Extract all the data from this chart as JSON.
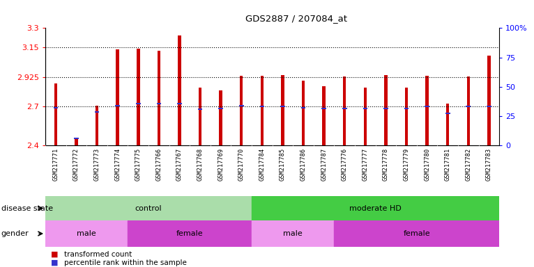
{
  "title": "GDS2887 / 207084_at",
  "samples": [
    "GSM217771",
    "GSM217772",
    "GSM217773",
    "GSM217774",
    "GSM217775",
    "GSM217766",
    "GSM217767",
    "GSM217768",
    "GSM217769",
    "GSM217770",
    "GSM217784",
    "GSM217785",
    "GSM217786",
    "GSM217787",
    "GSM217776",
    "GSM217777",
    "GSM217778",
    "GSM217779",
    "GSM217780",
    "GSM217781",
    "GSM217782",
    "GSM217783"
  ],
  "bar_values": [
    2.875,
    2.455,
    2.705,
    3.135,
    3.143,
    3.127,
    3.245,
    2.845,
    2.82,
    2.935,
    2.935,
    2.94,
    2.895,
    2.855,
    2.93,
    2.845,
    2.94,
    2.845,
    2.935,
    2.72,
    2.93,
    3.09
  ],
  "blue_marker_values": [
    2.69,
    2.455,
    2.655,
    2.705,
    2.72,
    2.72,
    2.72,
    2.68,
    2.685,
    2.705,
    2.7,
    2.7,
    2.69,
    2.685,
    2.685,
    2.685,
    2.685,
    2.685,
    2.7,
    2.645,
    2.7,
    2.7
  ],
  "y_min": 2.4,
  "y_max": 3.3,
  "y_ticks_left": [
    2.4,
    2.7,
    2.925,
    3.15,
    3.3
  ],
  "y_ticks_right": [
    0,
    25,
    50,
    75,
    100
  ],
  "bar_color": "#cc0000",
  "blue_color": "#3333cc",
  "disease_state_groups": [
    {
      "label": "control",
      "start": 0,
      "end": 9,
      "color": "#aaddaa"
    },
    {
      "label": "moderate HD",
      "start": 10,
      "end": 21,
      "color": "#44cc44"
    }
  ],
  "gender_groups": [
    {
      "label": "male",
      "start": 0,
      "end": 3,
      "color": "#ee99ee"
    },
    {
      "label": "female",
      "start": 4,
      "end": 9,
      "color": "#cc44cc"
    },
    {
      "label": "male",
      "start": 10,
      "end": 13,
      "color": "#ee99ee"
    },
    {
      "label": "female",
      "start": 14,
      "end": 21,
      "color": "#cc44cc"
    }
  ],
  "legend_items": [
    {
      "label": "transformed count",
      "color": "#cc0000"
    },
    {
      "label": "percentile rank within the sample",
      "color": "#3333cc"
    }
  ],
  "dotted_lines": [
    2.7,
    2.925,
    3.15
  ],
  "background_color": "#ffffff",
  "label_bg_color": "#dddddd"
}
